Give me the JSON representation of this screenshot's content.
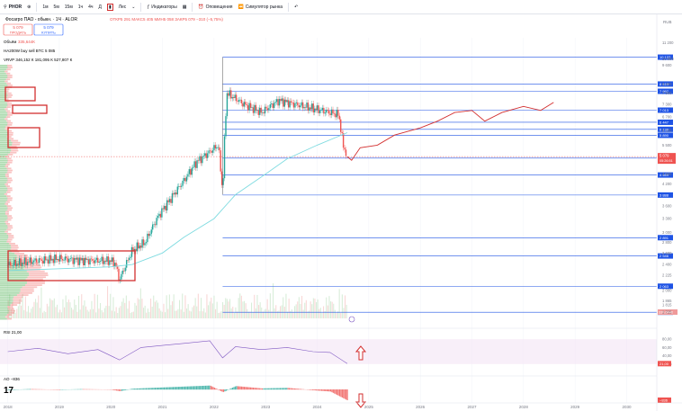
{
  "toolbar": {
    "symbol": "PHOR",
    "intervals": [
      "1м",
      "5м",
      "15м",
      "1ч",
      "4ч",
      "Д"
    ],
    "candles_label": "Лес",
    "indicators_label": "Индикаторы",
    "alerts_label": "Оповещения",
    "replay_label": "Симулятор рынка"
  },
  "legend": {
    "title": "Фосагро ПАО - обыкн. · 1Ч · ALOR",
    "ohlc": "ОТКР5 291 МАКС5 405 МИН5 058 ЗАКР5 079 −310 (−5,75%)",
    "sell_price": "5 079",
    "sell_label": "ПРОДАТЬ",
    "buy_price": "5 079",
    "buy_label": "КУПИТЬ",
    "volume_label": "Объём",
    "volume_value": "335,644К",
    "indicator": "HA200W buy sell BTC 5 085",
    "vrvp": "VRVP 346,152 К 181,095 К 527,807 К"
  },
  "colors": {
    "up": "#26a69a",
    "down": "#ef5350",
    "ma": "#7fdbe0",
    "level": "#1e53e5",
    "forecast": "#d32f2f",
    "rsi": "#7e57c2",
    "highlight": "#d32f2f",
    "vp": "#4caf50"
  },
  "chart_data": {
    "type": "candlestick",
    "price_axis_currency": "RUB",
    "price_axis_ticks": [
      "11 200",
      "10 000",
      "9 600",
      "8 400",
      "7 900",
      "7 300",
      "6 700",
      "6 100",
      "5 500",
      "4 500",
      "4 200",
      "3 600",
      "3 300",
      "3 000",
      "2 800",
      "2 600",
      "2 400",
      "2 225",
      "2 000",
      "1 865",
      "1 815",
      "1 725"
    ],
    "time_axis_ticks": [
      "2018",
      "2019",
      "2020",
      "2021",
      "2022",
      "2023",
      "2024",
      "2025",
      "2026",
      "2027",
      "2028",
      "2029",
      "2030"
    ],
    "price_path": [
      [
        "2018-01",
        2390
      ],
      [
        "2018-06",
        2450
      ],
      [
        "2019-01",
        2500
      ],
      [
        "2019-06",
        2470
      ],
      [
        "2020-01",
        2460
      ],
      [
        "2020-02",
        2420
      ],
      [
        "2020-03",
        2150
      ],
      [
        "2020-06",
        2650
      ],
      [
        "2020-09",
        2800
      ],
      [
        "2020-12",
        3350
      ],
      [
        "2021-03",
        3800
      ],
      [
        "2021-06",
        4300
      ],
      [
        "2021-09",
        4900
      ],
      [
        "2021-12",
        5250
      ],
      [
        "2022-02",
        5500
      ],
      [
        "2022-03",
        3900
      ],
      [
        "2022-04",
        7900
      ],
      [
        "2022-08",
        7300
      ],
      [
        "2022-12",
        6900
      ],
      [
        "2023-04",
        7500
      ],
      [
        "2023-08",
        7300
      ],
      [
        "2023-12",
        7100
      ],
      [
        "2024-04",
        6900
      ],
      [
        "2024-06",
        6800
      ],
      [
        "2024-07",
        5500
      ],
      [
        "2024-08",
        5079
      ]
    ],
    "moving_average": [
      [
        "2018-01",
        2300
      ],
      [
        "2019-01",
        2330
      ],
      [
        "2020-01",
        2360
      ],
      [
        "2020-06",
        2400
      ],
      [
        "2021-01",
        2600
      ],
      [
        "2021-06",
        2900
      ],
      [
        "2022-01",
        3300
      ],
      [
        "2022-06",
        3900
      ],
      [
        "2023-01",
        4500
      ],
      [
        "2023-06",
        5000
      ],
      [
        "2024-01",
        5500
      ],
      [
        "2024-06",
        5850
      ],
      [
        "2024-08",
        6000
      ]
    ],
    "forecast_path": [
      [
        "2024-08",
        5079
      ],
      [
        "2024-09",
        4950
      ],
      [
        "2024-11",
        5400
      ],
      [
        "2025-03",
        5500
      ],
      [
        "2025-07",
        5900
      ],
      [
        "2026-01",
        6200
      ],
      [
        "2026-05",
        6500
      ],
      [
        "2026-09",
        6900
      ],
      [
        "2027-01",
        7000
      ],
      [
        "2027-04",
        6500
      ],
      [
        "2027-08",
        6900
      ],
      [
        "2028-01",
        7200
      ],
      [
        "2028-05",
        7000
      ],
      [
        "2028-08",
        7400
      ]
    ],
    "levels": [
      {
        "price": 10137,
        "label": "10 137"
      },
      {
        "price": 8410,
        "label": "8 410"
      },
      {
        "price": 7997,
        "label": "7 997"
      },
      {
        "price": 7013,
        "label": "7 013"
      },
      {
        "price": 6447,
        "label": "6 447"
      },
      {
        "price": 6139,
        "label": "6 139"
      },
      {
        "price": 5890,
        "label": "5 890"
      },
      {
        "price": 5027,
        "label": "5 027"
      },
      {
        "price": 4469,
        "label": "4 469"
      },
      {
        "price": 3888,
        "label": "3 888"
      },
      {
        "price": 2891,
        "label": "2 891"
      },
      {
        "price": 2546,
        "label": "2 546"
      },
      {
        "price": 2063,
        "label": "2 063"
      },
      {
        "price": 1722,
        "label": "1 722"
      }
    ],
    "last_price_label": "5 079",
    "last_price_time": "05:26:51",
    "last_volume_label": "335,644К",
    "rsi": {
      "label": "RSI 21,00",
      "value_label": "21,00",
      "ticks": [
        "80,00",
        "60,00",
        "40,00",
        "20,00"
      ],
      "series": [
        [
          "2018-01",
          50
        ],
        [
          "2018-08",
          58
        ],
        [
          "2019-03",
          45
        ],
        [
          "2019-10",
          55
        ],
        [
          "2020-03",
          30
        ],
        [
          "2020-08",
          60
        ],
        [
          "2021-01",
          65
        ],
        [
          "2021-06",
          70
        ],
        [
          "2021-12",
          76
        ],
        [
          "2022-03",
          35
        ],
        [
          "2022-06",
          62
        ],
        [
          "2022-12",
          55
        ],
        [
          "2023-06",
          60
        ],
        [
          "2023-12",
          50
        ],
        [
          "2024-04",
          48
        ],
        [
          "2024-08",
          21
        ]
      ]
    },
    "ao": {
      "label": "AO −836",
      "value_label": "−836",
      "series": [
        [
          "2018-01",
          -40
        ],
        [
          "2018-06",
          30
        ],
        [
          "2019-01",
          -20
        ],
        [
          "2019-06",
          25
        ],
        [
          "2020-01",
          -10
        ],
        [
          "2020-03",
          -120
        ],
        [
          "2020-06",
          60
        ],
        [
          "2020-12",
          140
        ],
        [
          "2021-06",
          220
        ],
        [
          "2021-12",
          300
        ],
        [
          "2022-03",
          -200
        ],
        [
          "2022-06",
          260
        ],
        [
          "2022-12",
          80
        ],
        [
          "2023-06",
          120
        ],
        [
          "2023-12",
          -50
        ],
        [
          "2024-04",
          -150
        ],
        [
          "2024-08",
          -836
        ]
      ]
    }
  }
}
